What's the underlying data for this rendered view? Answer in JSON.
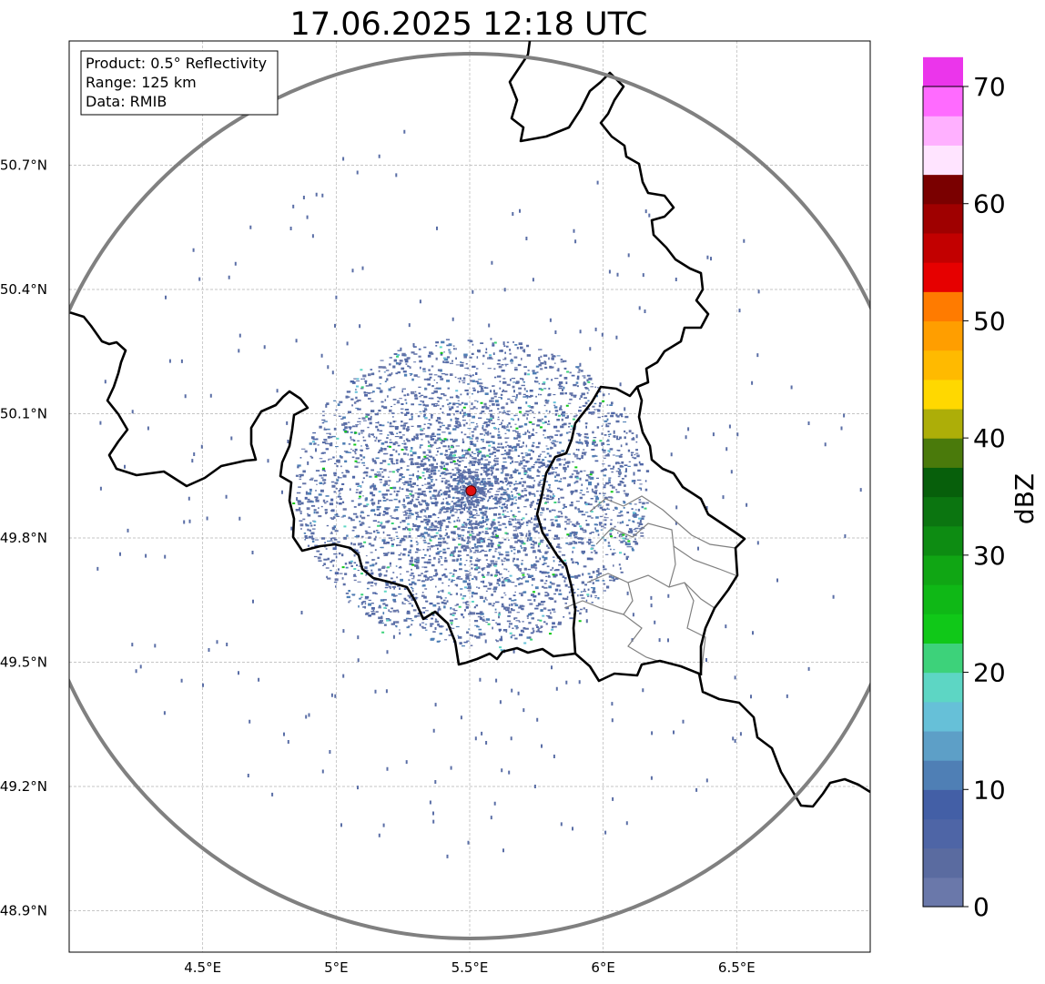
{
  "title": "17.06.2025 12:18 UTC",
  "info_box": {
    "product": "Product: 0.5° Reflectivity",
    "range": "Range: 125 km",
    "data": "Data: RMIB"
  },
  "map": {
    "lon_range": [
      4.0,
      7.0
    ],
    "lat_range": [
      48.8,
      51.0
    ],
    "lon_ticks": [
      {
        "value": 4.5,
        "label": "4.5°E"
      },
      {
        "value": 5.0,
        "label": "5°E"
      },
      {
        "value": 5.5,
        "label": "5.5°E"
      },
      {
        "value": 6.0,
        "label": "6°E"
      },
      {
        "value": 6.5,
        "label": "6.5°E"
      }
    ],
    "lat_ticks": [
      {
        "value": 50.7,
        "label": "50.7°N"
      },
      {
        "value": 50.4,
        "label": "50.4°N"
      },
      {
        "value": 50.1,
        "label": "50.1°N"
      },
      {
        "value": 49.8,
        "label": "49.8°N"
      },
      {
        "value": 49.5,
        "label": "49.5°N"
      },
      {
        "value": 49.2,
        "label": "49.2°N"
      },
      {
        "value": 48.9,
        "label": "48.9°N"
      }
    ],
    "radar_site": {
      "lon": 5.505,
      "lat": 49.914
    },
    "range_km": 125,
    "grid": true
  },
  "colorbar": {
    "label": "dBZ",
    "min": 0,
    "max": 70,
    "step": 2.5,
    "colors": [
      "#6a78aa",
      "#5a6ba0",
      "#4e65a6",
      "#435fa6",
      "#4f7fb5",
      "#5d9fc7",
      "#66c0d8",
      "#5dd6c4",
      "#3dd27a",
      "#10c818",
      "#0fb816",
      "#10a614",
      "#0d8c12",
      "#0b7510",
      "#075f0b",
      "#4a7a0b",
      "#adae08",
      "#ffd800",
      "#ffba00",
      "#ff9e00",
      "#ff7b00",
      "#e60000",
      "#c20000",
      "#9f0000",
      "#7a0000",
      "#ffe4ff",
      "#ffb0ff",
      "#ff6bff",
      "#eb35eb"
    ],
    "ticks": [
      {
        "value": 0,
        "label": "0"
      },
      {
        "value": 10,
        "label": "10"
      },
      {
        "value": 20,
        "label": "20"
      },
      {
        "value": 30,
        "label": "30"
      },
      {
        "value": 40,
        "label": "40"
      },
      {
        "value": 50,
        "label": "50"
      },
      {
        "value": 60,
        "label": "60"
      },
      {
        "value": 70,
        "label": "70"
      }
    ]
  },
  "colors": {
    "border": "#000000",
    "region_border": "#808080",
    "range_ring": "#808080",
    "radar_marker": "#e01010",
    "echo_base": "#5a6ea6"
  }
}
